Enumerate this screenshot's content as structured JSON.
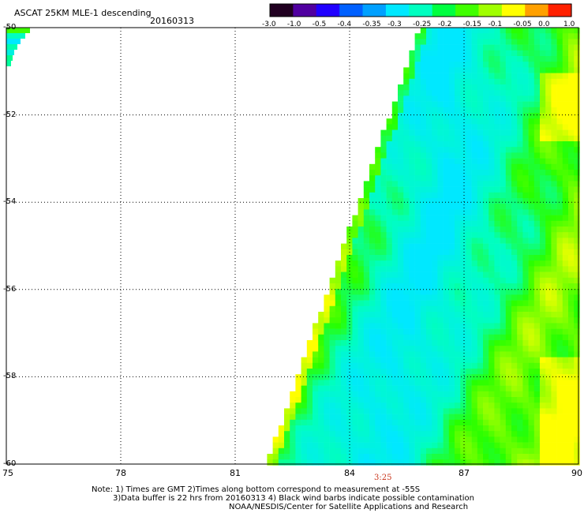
{
  "header": {
    "title": "ASCAT 25KM MLE-1 descending",
    "date": "20160313"
  },
  "colorbar": {
    "labels": [
      "-3.0",
      "-1.0",
      "-0.5",
      "-0.4",
      "-0.35",
      "-0.3",
      "-0.25",
      "-0.2",
      "-0.15",
      "-0.1",
      "-0.05",
      "0.0",
      "1.0"
    ],
    "colors": [
      "#200020",
      "#5000a0",
      "#2000ff",
      "#0060ff",
      "#00a0ff",
      "#00e8ff",
      "#00ffc0",
      "#00ff40",
      "#40ff00",
      "#a0ff00",
      "#ffff00",
      "#ffa000",
      "#ff2000"
    ]
  },
  "map": {
    "y_ticks": [
      "-50",
      "-52",
      "-54",
      "-56",
      "-58",
      "-60"
    ],
    "x_ticks": [
      "75",
      "78",
      "81",
      "84",
      "87",
      "90"
    ],
    "lat_range": [
      -60,
      -50
    ],
    "lon_range": [
      75,
      90
    ],
    "pass_time": "3:25"
  },
  "notes": {
    "line1": "Note: 1) Times are GMT 2)Times along bottom correspond to measurement at -55S",
    "line2": "3)Data buffer is 22 hrs from 20160313 4) Black wind barbs indicate possible contamination",
    "line3": "NOAA/NESDIS/Center for Satellite Applications and Research"
  }
}
